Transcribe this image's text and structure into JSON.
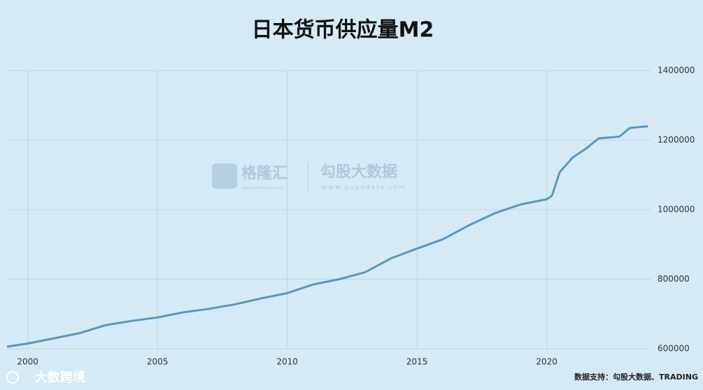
{
  "chart_data": {
    "type": "line",
    "title": "日本货币供应量M2",
    "x": [
      1999.2,
      2000,
      2001,
      2002,
      2003,
      2004,
      2005,
      2006,
      2007,
      2008,
      2009,
      2010,
      2011,
      2012,
      2013,
      2014,
      2015,
      2016,
      2017,
      2018,
      2019,
      2020,
      2020.2,
      2020.5,
      2021,
      2021.5,
      2022,
      2022.8,
      2023.2,
      2023.9
    ],
    "series": [
      {
        "name": "M2",
        "color": "#5b97c0",
        "values": [
          606000,
          615000,
          630000,
          645000,
          668000,
          680000,
          690000,
          705000,
          715000,
          728000,
          745000,
          760000,
          785000,
          800000,
          820000,
          860000,
          888000,
          915000,
          955000,
          990000,
          1015000,
          1030000,
          1040000,
          1108000,
          1150000,
          1175000,
          1205000,
          1210000,
          1235000,
          1240000
        ]
      }
    ],
    "xlim": [
      1999.2,
      2024
    ],
    "xticks": [
      2000,
      2005,
      2010,
      2015,
      2020
    ],
    "ylim": [
      600000,
      1400000
    ],
    "yticks": [
      600000,
      800000,
      1000000,
      1200000,
      1400000
    ],
    "grid": true,
    "watermark": [
      "格隆汇",
      "www.gelonghui.com",
      "勾股大数据",
      "www.gogudata.com"
    ],
    "source": "数据支持：勾股大数据、TRADING",
    "logo": "大数跨境"
  }
}
